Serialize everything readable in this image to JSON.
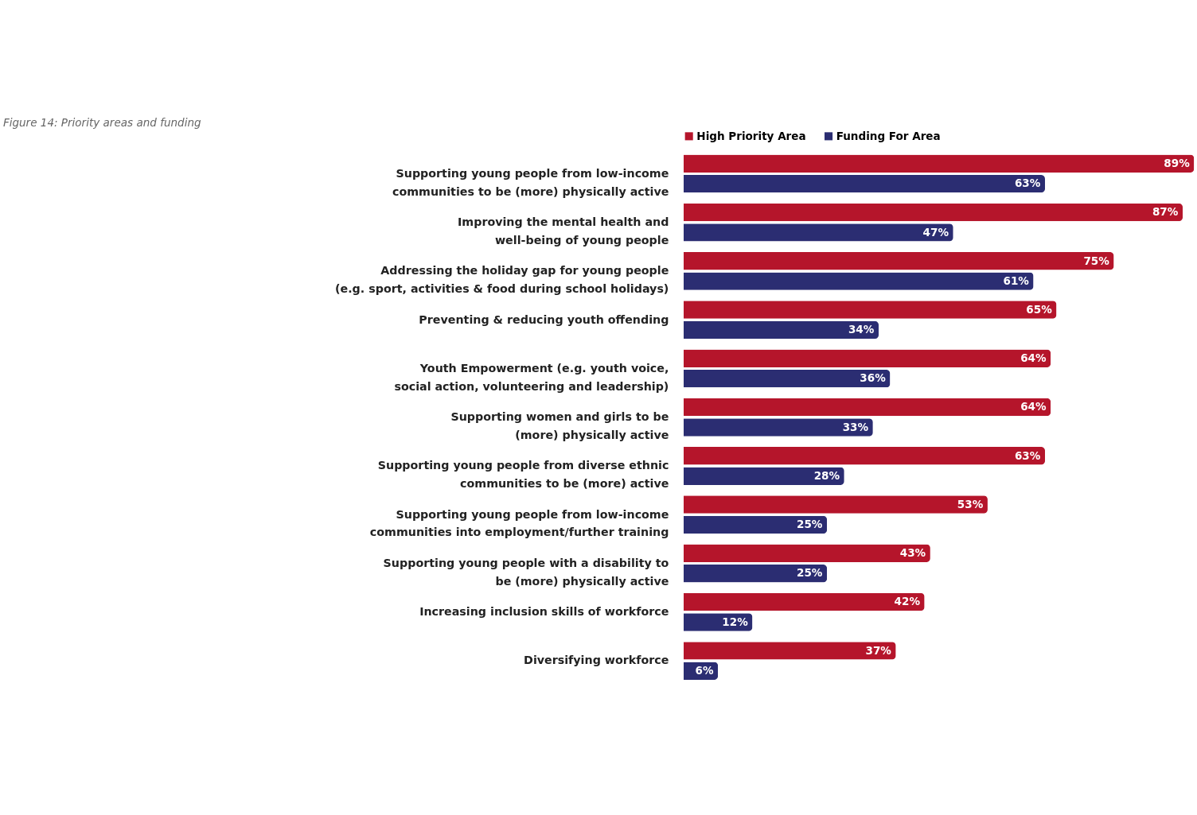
{
  "chart_data": {
    "type": "bar",
    "orientation": "horizontal",
    "title": "Figure 14: Priority areas and funding",
    "categories": [
      "Supporting young people from low-income\ncommunities to be (more) physically active",
      "Improving the mental health and\nwell-being of young people",
      "Addressing the holiday gap for young people\n(e.g. sport, activities & food during school holidays)",
      "Preventing & reducing youth offending",
      "Youth Empowerment (e.g. youth voice,\nsocial action, volunteering and leadership)",
      "Supporting women and girls to be\n(more) physically active",
      "Supporting young people from diverse ethnic\ncommunities to be (more) active",
      "Supporting young people from low-income\ncommunities into employment/further training",
      "Supporting young people with a disability to\nbe (more) physically active",
      "Increasing inclusion skills of workforce",
      "Diversifying workforce"
    ],
    "series": [
      {
        "name": "High Priority Area",
        "color": "#b5152b",
        "values": [
          89,
          87,
          75,
          65,
          64,
          64,
          63,
          53,
          43,
          42,
          37
        ],
        "value_labels": [
          "89%",
          "87%",
          "75%",
          "65%",
          "64%",
          "64%",
          "63%",
          "53%",
          "43%",
          "42%",
          "37%"
        ]
      },
      {
        "name": "Funding For Area",
        "color": "#2b2d72",
        "values": [
          63,
          47,
          61,
          34,
          36,
          33,
          28,
          25,
          25,
          12,
          6
        ],
        "value_labels": [
          "63%",
          "47%",
          "61%",
          "34%",
          "36%",
          "33%",
          "28%",
          "25%",
          "25%",
          "12%",
          "6%"
        ]
      }
    ],
    "legend": "top"
  }
}
